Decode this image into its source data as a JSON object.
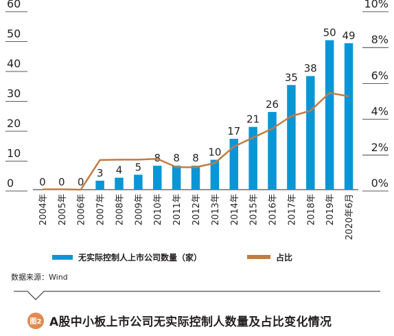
{
  "chart_data": {
    "type": "bar+line",
    "categories": [
      "2004年",
      "2005年",
      "2006年",
      "2007年",
      "2008年",
      "2009年",
      "2010年",
      "2011年",
      "2012年",
      "2013年",
      "2014年",
      "2015年",
      "2016年",
      "2017年",
      "2018年",
      "2019年",
      "2020年6月"
    ],
    "series": [
      {
        "name": "无实际控制人上市公司数量（家）",
        "type": "bar",
        "axis": "left",
        "color": "#0a96d6",
        "values": [
          0,
          0,
          0,
          3,
          4,
          5,
          8,
          8,
          8,
          10,
          17,
          21,
          26,
          35,
          38,
          50,
          49
        ]
      },
      {
        "name": "占比",
        "type": "line",
        "axis": "right",
        "color": "#c07b43",
        "values": [
          0.02,
          0.02,
          0.0,
          1.65,
          1.67,
          1.67,
          1.72,
          1.25,
          1.25,
          1.48,
          2.4,
          2.9,
          3.4,
          4.1,
          4.4,
          5.4,
          5.2
        ]
      }
    ],
    "left_axis": {
      "ylim": [
        0,
        60
      ],
      "ticks": [
        "0",
        "10",
        "20",
        "30",
        "40",
        "50",
        "60"
      ]
    },
    "right_axis": {
      "ylim": [
        0,
        10
      ],
      "ticks": [
        "0%",
        "2%",
        "4%",
        "6%",
        "8%",
        "10%"
      ]
    },
    "legend_position": "bottom"
  },
  "source_text": "数据来源：Wind",
  "caption": {
    "badge": "图2",
    "title": "A股中小板上市公司无实际控制人数量及占比变化情况"
  }
}
